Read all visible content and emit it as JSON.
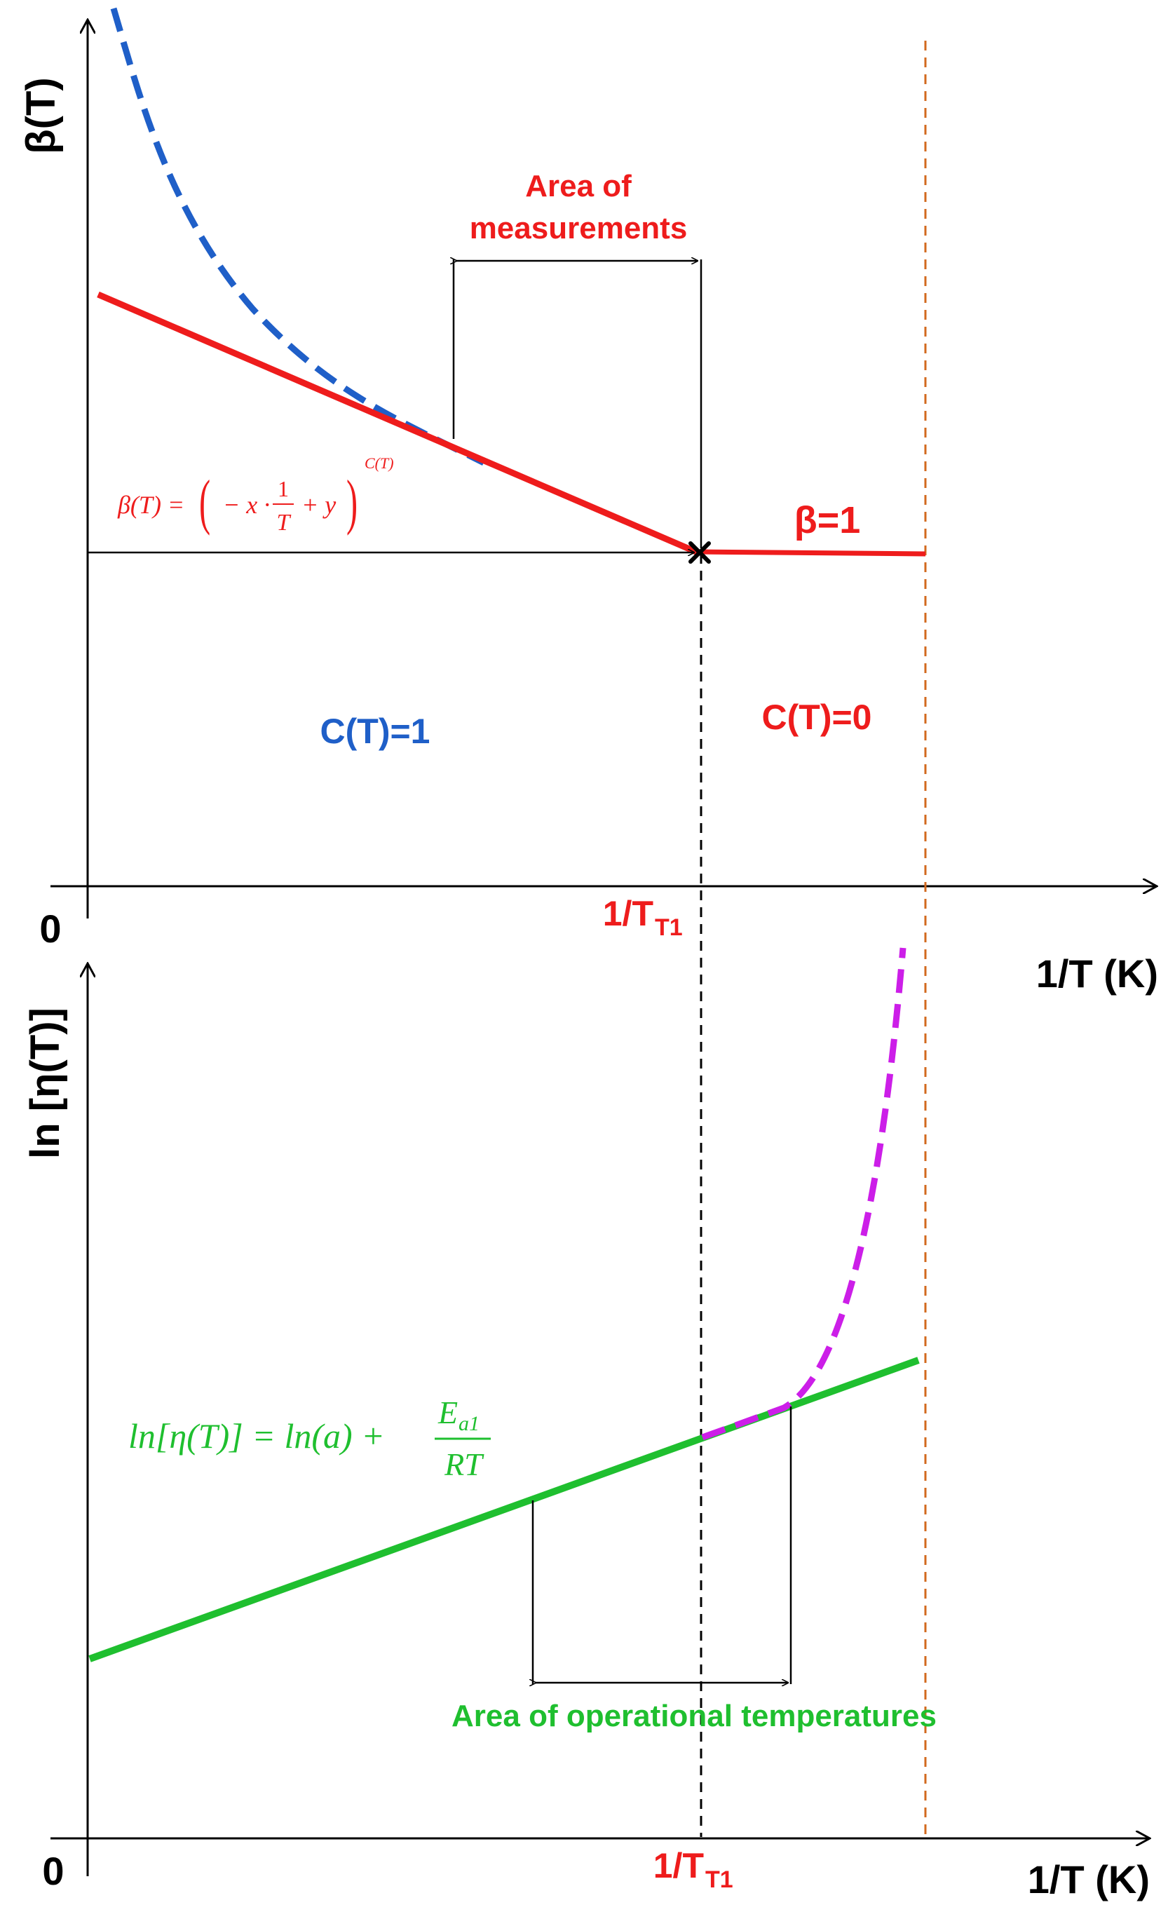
{
  "colors": {
    "red": "#ee1c1c",
    "blue": "#1f5fc8",
    "green": "#1fbf2f",
    "magenta": "#cc1ee8",
    "orange": "#d2691e",
    "black": "#000000"
  },
  "top_panel": {
    "y_axis_label": "β(T)",
    "origin_label": "0",
    "x_axis_label": "1/T (K)",
    "area_label_line1": "Area of",
    "area_label_line2": "measurements",
    "beta_one_label": "β=1",
    "c1_label": "C(T)=1",
    "c0_label": "C(T)=0",
    "tick_label_main": "1/T",
    "tick_label_sub": "T1",
    "equation": {
      "lhs": "β(T) =",
      "minus_x": "− x ·",
      "frac_num": "1",
      "frac_den": "T",
      "plus_y": "+ y",
      "exponent": "C(T)"
    }
  },
  "bottom_panel": {
    "y_axis_label": "ln [η(T)]",
    "origin_label": "0",
    "x_axis_label": "1/T (K)",
    "area_label": "Area of operational temperatures",
    "tick_label_main": "1/T",
    "tick_label_sub": "T1",
    "equation": {
      "lhs": "ln[η(T)] = ln(a) +",
      "frac_num": "E",
      "frac_num_sub": "a1",
      "frac_den": "RT"
    }
  }
}
